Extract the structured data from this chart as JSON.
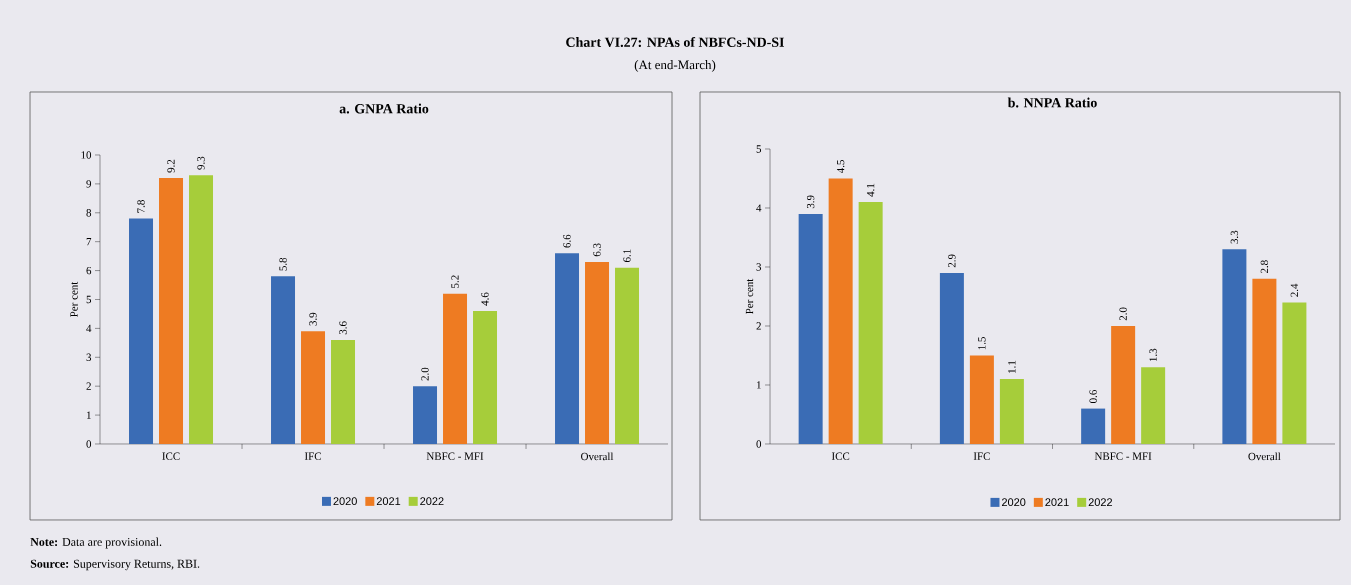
{
  "chart_data": [
    {
      "type": "bar",
      "title": "a. GNPA Ratio",
      "ylabel": "Per cent",
      "categories": [
        "ICC",
        "IFC",
        "NBFC - MFI",
        "Overall"
      ],
      "series": [
        {
          "name": "2020",
          "color": "#3a6cb5",
          "values": [
            7.8,
            5.8,
            2.0,
            6.6
          ],
          "value_labels": [
            "7.8",
            "5.8",
            "2.0",
            "6.6"
          ]
        },
        {
          "name": "2021",
          "color": "#ee7b22",
          "values": [
            9.2,
            3.9,
            5.2,
            6.3
          ],
          "value_labels": [
            "9.2",
            "3.9",
            "5.2",
            "6.3"
          ]
        },
        {
          "name": "2022",
          "color": "#a6cd3a",
          "values": [
            9.3,
            3.6,
            4.6,
            6.1
          ],
          "value_labels": [
            "9.3",
            "3.6",
            "4.6",
            "6.1"
          ]
        }
      ],
      "ylim": [
        0,
        10
      ],
      "yticks": [
        0,
        1,
        2,
        3,
        4,
        5,
        6,
        7,
        8,
        9,
        10
      ],
      "legend": "bottom",
      "annotations": [
        "Chart VI.27: NPAs of NBFCs-ND-SI",
        "(At end-March)",
        "**Note:** Data are provisional.",
        "**Source:** Supervisory Returns, RBI."
      ]
    },
    {
      "type": "bar",
      "title": "b. NNPA Ratio",
      "ylabel": "Per cent",
      "categories": [
        "ICC",
        "IFC",
        "NBFC - MFI",
        "Overall"
      ],
      "series": [
        {
          "name": "2020",
          "color": "#3a6cb5",
          "values": [
            3.9,
            2.9,
            0.6,
            3.3
          ],
          "value_labels": [
            "3.9",
            "2.9",
            "0.6",
            "3.3"
          ]
        },
        {
          "name": "2021",
          "color": "#ee7b22",
          "values": [
            4.5,
            1.5,
            2.0,
            2.8
          ],
          "value_labels": [
            "4.5",
            "1.5",
            "2.0",
            "2.8"
          ]
        },
        {
          "name": "2022",
          "color": "#a6cd3a",
          "values": [
            4.1,
            1.1,
            1.3,
            2.4
          ],
          "value_labels": [
            "4.1",
            "1.1",
            "1.3",
            "2.4"
          ]
        }
      ],
      "ylim": [
        0,
        5
      ],
      "yticks": [
        0,
        1,
        2,
        3,
        4,
        5
      ],
      "legend": "bottom"
    }
  ]
}
